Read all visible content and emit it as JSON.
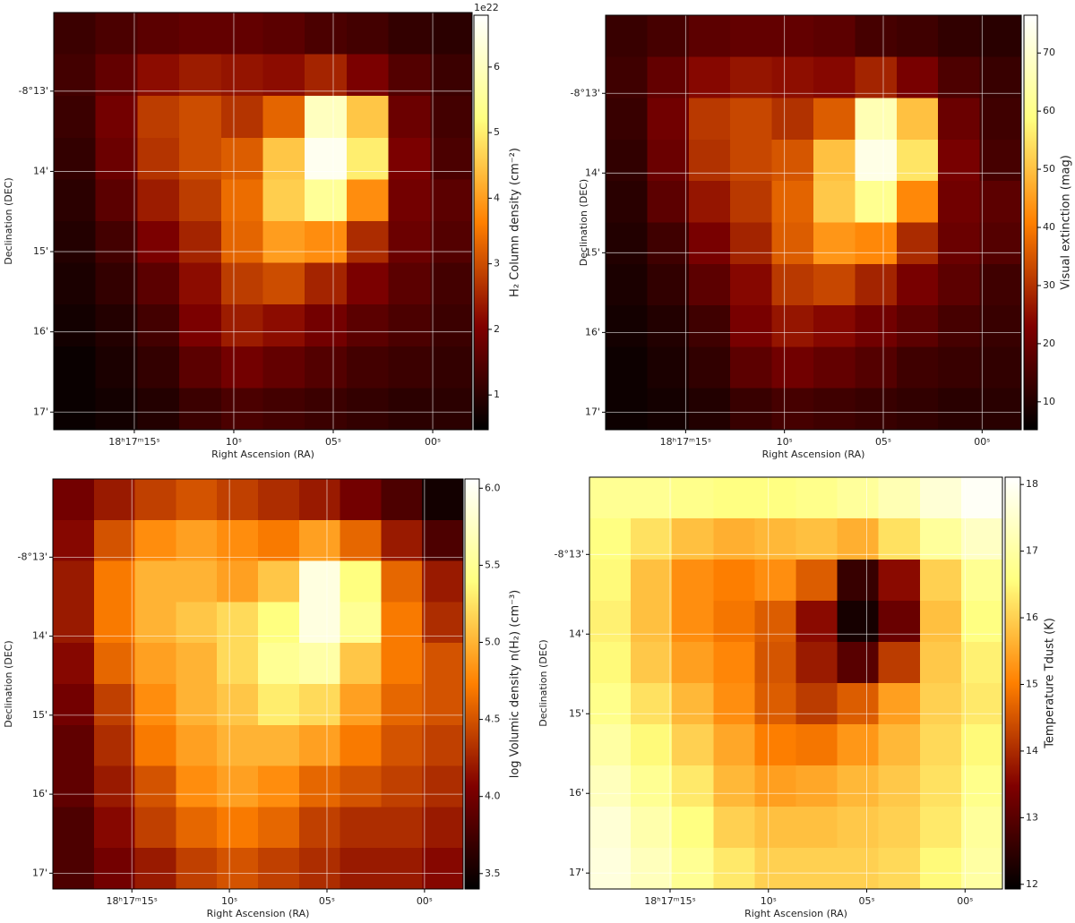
{
  "chart_data": [
    {
      "type": "heatmap",
      "colormap": "afmhot",
      "xlabel": "Right Ascension (RA)",
      "ylabel": "Declination (DEC)",
      "xlim": [
        19.05,
        -1.98
      ],
      "ylim": [
        17.22,
        12.02
      ],
      "xticks": [
        {
          "value": 15,
          "label": "18ʰ17ᵐ15ˢ"
        },
        {
          "value": 10,
          "label": "10ˢ"
        },
        {
          "value": 5,
          "label": "05ˢ"
        },
        {
          "value": 0,
          "label": "00ˢ"
        }
      ],
      "yticks": [
        {
          "value": 13,
          "label": "-8°13'"
        },
        {
          "value": 14,
          "label": "14'"
        },
        {
          "value": 15,
          "label": "15'"
        },
        {
          "value": 16,
          "label": "16'"
        },
        {
          "value": 17,
          "label": "17'"
        }
      ],
      "grid": true,
      "colorbar_label": "H₂ Column density (cm⁻²)",
      "colorbar_offset": "1e22",
      "clim": [
        0.47,
        6.79
      ],
      "cticks": [
        1,
        2,
        3,
        4,
        5,
        6
      ],
      "z": [
        [
          1.2,
          1.4,
          1.6,
          1.7,
          1.7,
          1.6,
          1.4,
          1.3,
          1.1,
          1.0
        ],
        [
          1.3,
          1.7,
          2.2,
          2.4,
          2.3,
          2.2,
          2.5,
          2.0,
          1.5,
          1.2
        ],
        [
          1.2,
          1.9,
          2.8,
          3.0,
          2.7,
          3.3,
          6.0,
          4.5,
          1.8,
          1.3
        ],
        [
          1.1,
          1.8,
          2.7,
          3.0,
          3.2,
          4.5,
          6.6,
          5.0,
          2.0,
          1.4
        ],
        [
          1.0,
          1.6,
          2.4,
          2.8,
          3.4,
          4.6,
          5.5,
          3.8,
          1.9,
          1.6
        ],
        [
          0.9,
          1.3,
          2.0,
          2.5,
          3.3,
          4.0,
          3.8,
          2.6,
          1.8,
          1.5
        ],
        [
          0.8,
          1.1,
          1.6,
          2.2,
          2.8,
          3.0,
          2.5,
          2.0,
          1.6,
          1.3
        ],
        [
          0.7,
          0.9,
          1.3,
          2.0,
          2.4,
          2.2,
          1.9,
          1.6,
          1.4,
          1.2
        ],
        [
          0.6,
          0.8,
          1.1,
          1.6,
          1.9,
          1.7,
          1.5,
          1.3,
          1.2,
          1.1
        ],
        [
          0.6,
          0.7,
          0.9,
          1.2,
          1.4,
          1.3,
          1.2,
          1.1,
          1.0,
          1.0
        ]
      ]
    },
    {
      "type": "heatmap",
      "colormap": "afmhot",
      "xlabel": "Right Ascension (RA)",
      "ylabel": "Declination (DEC)",
      "xlim": [
        19.05,
        -1.98
      ],
      "ylim": [
        17.22,
        12.02
      ],
      "xticks": [
        {
          "value": 15,
          "label": "18ʰ17ᵐ15ˢ"
        },
        {
          "value": 10,
          "label": "10ˢ"
        },
        {
          "value": 5,
          "label": "05ˢ"
        },
        {
          "value": 0,
          "label": "00ˢ"
        }
      ],
      "yticks": [
        {
          "value": 13,
          "label": "-8°13'"
        },
        {
          "value": 14,
          "label": "14'"
        },
        {
          "value": 15,
          "label": "15'"
        },
        {
          "value": 16,
          "label": "16'"
        },
        {
          "value": 17,
          "label": "17'"
        }
      ],
      "grid": true,
      "colorbar_label": "Visual extinction (mag)",
      "clim": [
        5.2,
        76.5
      ],
      "cticks": [
        10,
        20,
        30,
        40,
        50,
        60,
        70
      ],
      "z": [
        [
          13,
          15,
          18,
          19,
          19,
          18,
          15,
          14,
          12,
          11
        ],
        [
          14,
          19,
          24,
          26,
          25,
          24,
          28,
          22,
          16,
          13
        ],
        [
          13,
          21,
          31,
          33,
          30,
          36,
          66,
          50,
          20,
          14
        ],
        [
          12,
          20,
          30,
          33,
          35,
          50,
          73,
          55,
          22,
          15
        ],
        [
          11,
          18,
          26,
          31,
          37,
          51,
          61,
          42,
          21,
          18
        ],
        [
          10,
          14,
          22,
          28,
          36,
          44,
          42,
          29,
          20,
          17
        ],
        [
          9,
          12,
          18,
          24,
          31,
          33,
          28,
          22,
          18,
          14
        ],
        [
          8,
          10,
          14,
          22,
          26,
          24,
          21,
          18,
          15,
          13
        ],
        [
          7,
          9,
          12,
          18,
          21,
          19,
          17,
          14,
          13,
          12
        ],
        [
          7,
          8,
          10,
          13,
          15,
          14,
          13,
          12,
          11,
          11
        ]
      ]
    },
    {
      "type": "heatmap",
      "colormap": "afmhot",
      "xlabel": "Right Ascension (RA)",
      "ylabel": "Declination (DEC)",
      "xlim": [
        19.05,
        -1.98
      ],
      "ylim": [
        17.2,
        12.01
      ],
      "xticks": [
        {
          "value": 15,
          "label": "18ʰ17ᵐ15ˢ"
        },
        {
          "value": 10,
          "label": "10ˢ"
        },
        {
          "value": 5,
          "label": "05ˢ"
        },
        {
          "value": 0,
          "label": "00ˢ"
        }
      ],
      "yticks": [
        {
          "value": 13,
          "label": "-8°13'"
        },
        {
          "value": 14,
          "label": "14'"
        },
        {
          "value": 15,
          "label": "15'"
        },
        {
          "value": 16,
          "label": "16'"
        },
        {
          "value": 17,
          "label": "17'"
        }
      ],
      "grid": true,
      "colorbar_label": "log Volumic density n(H₂) (cm⁻³)",
      "clim": [
        3.4,
        6.06
      ],
      "cticks": [
        3.5,
        {
          "value": 4,
          "label": "4.0"
        },
        4.5,
        {
          "value": 5,
          "label": "5.0"
        },
        5.5,
        {
          "value": 6,
          "label": "6.0"
        }
      ],
      "z": [
        [
          4.0,
          4.2,
          4.4,
          4.5,
          4.4,
          4.3,
          4.2,
          4.0,
          3.8,
          3.5
        ],
        [
          4.1,
          4.5,
          4.8,
          4.9,
          4.8,
          4.7,
          4.9,
          4.6,
          4.2,
          3.8
        ],
        [
          4.2,
          4.7,
          5.0,
          5.0,
          4.9,
          5.1,
          5.9,
          5.4,
          4.6,
          4.2
        ],
        [
          4.2,
          4.7,
          5.0,
          5.1,
          5.2,
          5.4,
          5.9,
          5.5,
          4.7,
          4.3
        ],
        [
          4.1,
          4.6,
          4.9,
          5.0,
          5.2,
          5.5,
          5.6,
          5.1,
          4.7,
          4.5
        ],
        [
          4.0,
          4.4,
          4.8,
          5.0,
          5.1,
          5.3,
          5.2,
          4.9,
          4.6,
          4.5
        ],
        [
          3.9,
          4.3,
          4.7,
          4.9,
          5.0,
          5.0,
          4.9,
          4.7,
          4.5,
          4.4
        ],
        [
          3.9,
          4.2,
          4.5,
          4.8,
          4.9,
          4.8,
          4.6,
          4.5,
          4.4,
          4.3
        ],
        [
          3.8,
          4.1,
          4.4,
          4.6,
          4.7,
          4.6,
          4.4,
          4.3,
          4.3,
          4.2
        ],
        [
          3.8,
          4.0,
          4.2,
          4.4,
          4.5,
          4.4,
          4.3,
          4.2,
          4.2,
          4.1
        ]
      ]
    },
    {
      "type": "heatmap",
      "colormap": "afmhot",
      "xlabel": "Right Ascension (RA)",
      "ylabel": "Declination (DEC)",
      "xlim": [
        19.1,
        -1.9
      ],
      "ylim": [
        17.2,
        12.03
      ],
      "xticks": [
        {
          "value": 15,
          "label": "18ʰ17ᵐ15ˢ"
        },
        {
          "value": 10,
          "label": "10ˢ"
        },
        {
          "value": 5,
          "label": "05ˢ"
        },
        {
          "value": 0,
          "label": "00ˢ"
        }
      ],
      "yticks": [
        {
          "value": 13,
          "label": "-8°13'"
        },
        {
          "value": 14,
          "label": "14'"
        },
        {
          "value": 15,
          "label": "15'"
        },
        {
          "value": 16,
          "label": "16'"
        },
        {
          "value": 17,
          "label": "17'"
        }
      ],
      "grid": true,
      "colorbar_label": "Temperature Tdust (K)",
      "clim": [
        11.93,
        18.11
      ],
      "cticks": [
        12,
        13,
        14,
        15,
        16,
        17,
        18
      ],
      "z": [
        [
          16.8,
          16.8,
          16.7,
          16.6,
          16.6,
          16.7,
          16.9,
          17.2,
          17.6,
          18.0
        ],
        [
          16.6,
          16.2,
          15.8,
          15.6,
          15.7,
          15.8,
          15.6,
          16.2,
          16.9,
          17.4
        ],
        [
          16.5,
          15.8,
          15.2,
          15.0,
          15.2,
          14.6,
          12.6,
          13.6,
          16.0,
          16.8
        ],
        [
          16.4,
          15.8,
          15.2,
          14.9,
          14.6,
          13.6,
          12.2,
          13.2,
          15.8,
          16.6
        ],
        [
          16.5,
          15.9,
          15.4,
          15.1,
          14.5,
          13.8,
          13.0,
          14.2,
          15.9,
          16.4
        ],
        [
          16.7,
          16.2,
          15.7,
          15.2,
          14.6,
          14.2,
          14.6,
          15.4,
          16.0,
          16.3
        ],
        [
          17.0,
          16.5,
          16.0,
          15.5,
          15.0,
          14.9,
          15.3,
          15.7,
          16.1,
          16.5
        ],
        [
          17.3,
          16.8,
          16.3,
          15.7,
          15.4,
          15.5,
          15.7,
          15.9,
          16.2,
          16.7
        ],
        [
          17.6,
          17.1,
          16.6,
          16.0,
          15.8,
          15.8,
          15.9,
          16.0,
          16.3,
          16.9
        ],
        [
          17.7,
          17.3,
          16.8,
          16.3,
          16.0,
          16.0,
          16.0,
          16.1,
          16.5,
          17.0
        ]
      ]
    }
  ]
}
